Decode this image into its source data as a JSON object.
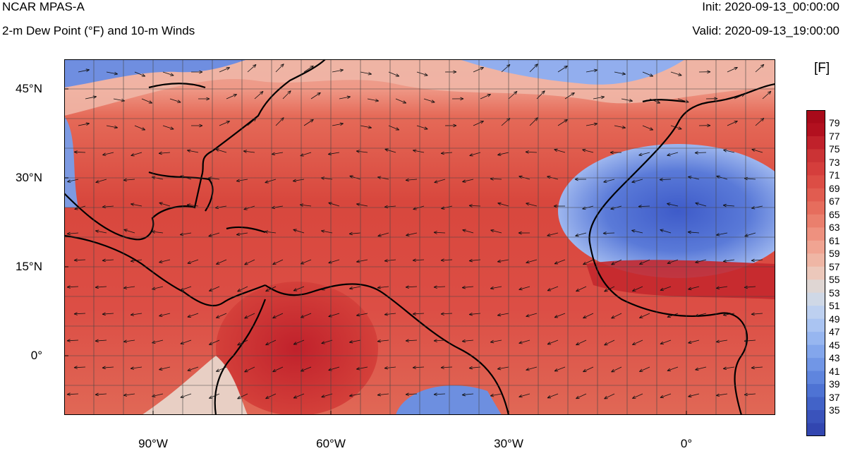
{
  "header": {
    "model": "NCAR MPAS-A",
    "field": "2-m Dew Point (°F) and 10-m Winds",
    "init": "Init: 2020-09-13_00:00:00",
    "valid": "Valid: 2020-09-13_19:00:00"
  },
  "map": {
    "lat_labels": [
      "45°N",
      "30°N",
      "15°N",
      "0°"
    ],
    "lon_labels": [
      "90°W",
      "60°W",
      "30°W",
      "0°"
    ],
    "lon_range": [
      -105,
      15
    ],
    "lat_range": [
      -10,
      50
    ]
  },
  "colorbar": {
    "units": "[F]",
    "labels": [
      "79",
      "77",
      "75",
      "73",
      "71",
      "69",
      "67",
      "65",
      "63",
      "61",
      "59",
      "57",
      "55",
      "53",
      "51",
      "49",
      "47",
      "45",
      "43",
      "41",
      "39",
      "37",
      "35"
    ],
    "colors": [
      "#b2101f",
      "#c0212b",
      "#cb3335",
      "#d53e3c",
      "#dc4d45",
      "#e15c50",
      "#e66d5d",
      "#ea7f6d",
      "#ee917f",
      "#f0a492",
      "#efb6a5",
      "#ecc8bb",
      "#dfd6d3",
      "#cfd8e6",
      "#bdd0f0",
      "#aac4f2",
      "#97b6f0",
      "#83a6ec",
      "#7196e6",
      "#5f85de",
      "#4e73d4",
      "#4263c8",
      "#3a53bb"
    ],
    "bottom_color": "#3246b0"
  },
  "colors": {
    "land_outline": "#000000",
    "grid": "#333333"
  }
}
